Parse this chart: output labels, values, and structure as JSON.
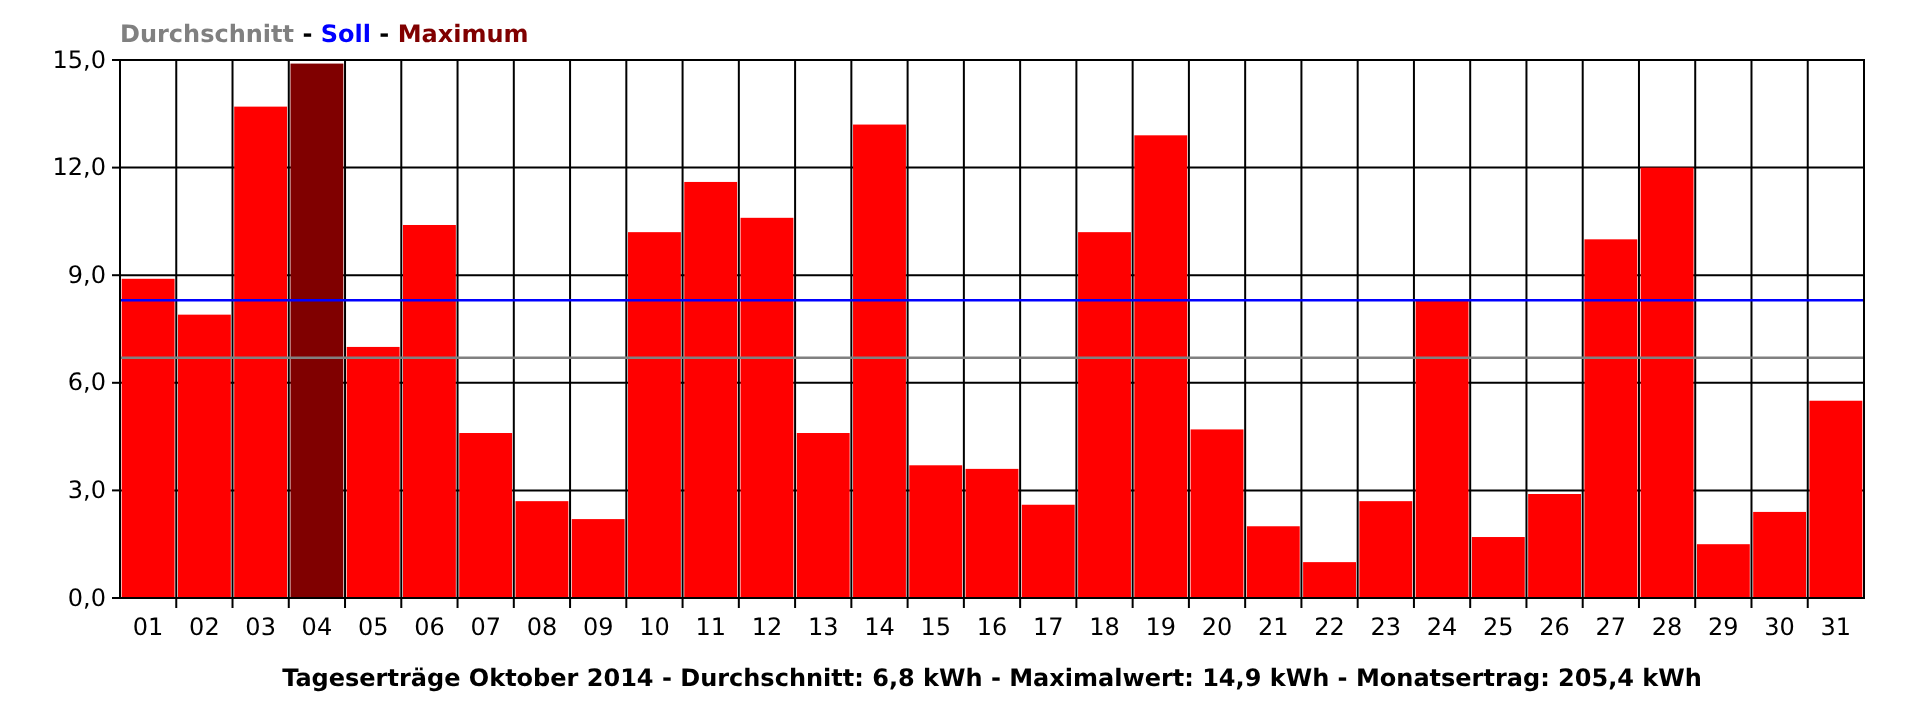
{
  "chart_data": {
    "type": "bar",
    "title": "Tageserträge Oktober 2014 - Durchschnitt: 6,8 kWh - Maximalwert: 14,9 kWh - Monatsertrag: 205,4 kWh",
    "categories": [
      "01",
      "02",
      "03",
      "04",
      "05",
      "06",
      "07",
      "08",
      "09",
      "10",
      "11",
      "12",
      "13",
      "14",
      "15",
      "16",
      "17",
      "18",
      "19",
      "20",
      "21",
      "22",
      "23",
      "24",
      "25",
      "26",
      "27",
      "28",
      "29",
      "30",
      "31"
    ],
    "values": [
      8.9,
      7.9,
      13.7,
      14.9,
      7.0,
      10.4,
      4.6,
      2.7,
      2.2,
      10.2,
      11.6,
      10.6,
      4.6,
      13.2,
      3.7,
      3.6,
      2.6,
      10.2,
      12.9,
      4.7,
      2.0,
      1.0,
      2.7,
      8.3,
      1.7,
      2.9,
      10.0,
      12.0,
      1.5,
      2.4,
      5.5
    ],
    "colors": [
      "#ff0000",
      "#ff0000",
      "#ff0000",
      "#800000",
      "#ff0000",
      "#ff0000",
      "#ff0000",
      "#ff0000",
      "#ff0000",
      "#ff0000",
      "#ff0000",
      "#ff0000",
      "#ff0000",
      "#ff0000",
      "#ff0000",
      "#ff0000",
      "#ff0000",
      "#ff0000",
      "#ff0000",
      "#ff0000",
      "#ff0000",
      "#ff0000",
      "#ff0000",
      "#ff0000",
      "#ff0000",
      "#ff0000",
      "#ff0000",
      "#ff0000",
      "#ff0000",
      "#ff0000",
      "#ff0000"
    ],
    "ylim": [
      0,
      15
    ],
    "yticks": [
      {
        "value": 0,
        "label": "0,0"
      },
      {
        "value": 3,
        "label": "3,0"
      },
      {
        "value": 6,
        "label": "6,0"
      },
      {
        "value": 9,
        "label": "9,0"
      },
      {
        "value": 12,
        "label": "12,0"
      },
      {
        "value": 15,
        "label": "15,0"
      }
    ],
    "ref_lines": [
      {
        "axis": "y",
        "value": 6.7,
        "color": "#808080"
      },
      {
        "axis": "y",
        "value": 8.3,
        "color": "#0000ff"
      }
    ],
    "annotations": [
      "Durchschnitt - Soll - Maximum"
    ],
    "grid": true
  }
}
